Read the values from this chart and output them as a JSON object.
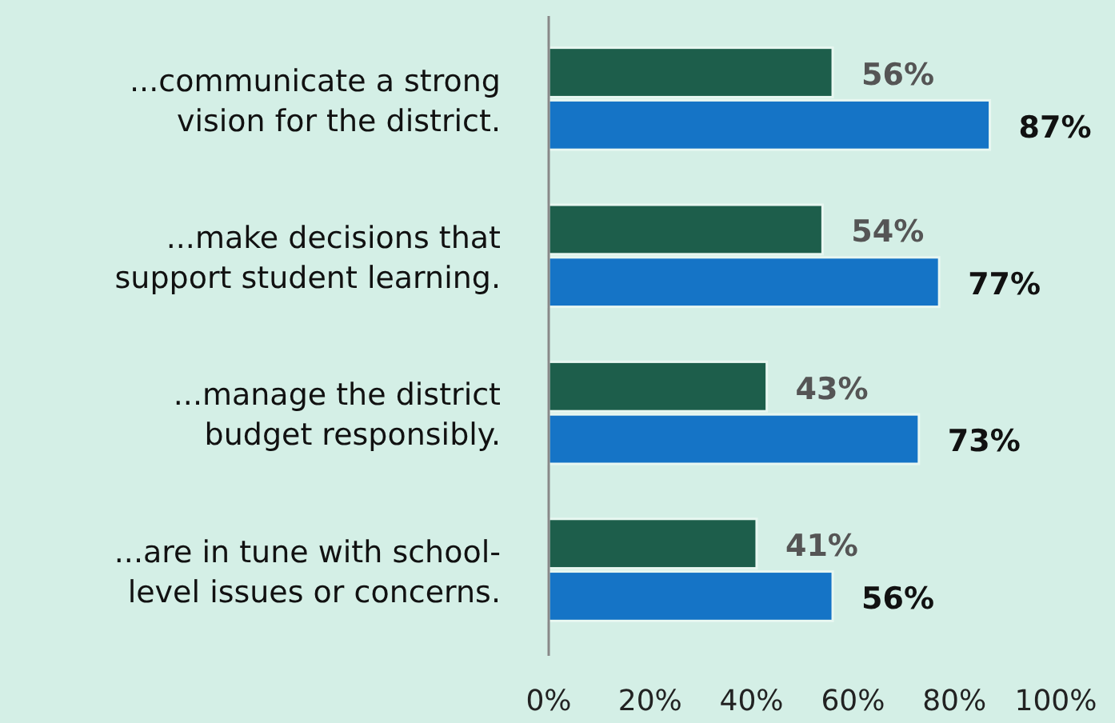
{
  "chart_data": {
    "type": "bar",
    "orientation": "horizontal",
    "categories": [
      "...communicate a strong\nvision for the district.",
      "...make decisions that\nsupport student learning.",
      "...manage the district\nbudget responsibly.",
      "...are in tune with school-\nlevel issues or concerns."
    ],
    "series": [
      {
        "color": "#1d5e4b",
        "values": [
          56,
          54,
          43,
          41
        ],
        "value_labels": [
          "56%",
          "54%",
          "43%",
          "41%"
        ]
      },
      {
        "color": "#1574c6",
        "values": [
          87,
          77,
          73,
          56
        ],
        "value_labels": [
          "87%",
          "77%",
          "73%",
          "56%"
        ]
      }
    ],
    "xlim": [
      0,
      100
    ],
    "xticks": [
      {
        "value": 0,
        "label": "0%"
      },
      {
        "value": 20,
        "label": "20%"
      },
      {
        "value": 40,
        "label": "40%"
      },
      {
        "value": 60,
        "label": "60%"
      },
      {
        "value": 80,
        "label": "80%"
      },
      {
        "value": 100,
        "label": "100%"
      }
    ],
    "grid": false
  }
}
